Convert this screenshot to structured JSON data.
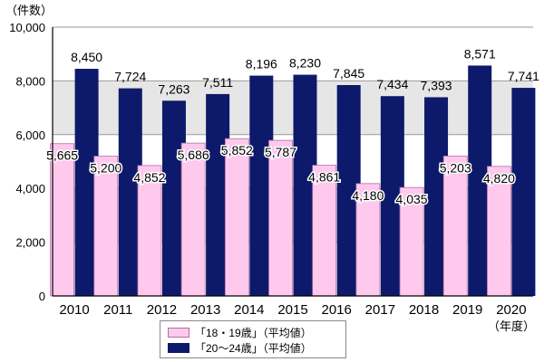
{
  "chart_data": {
    "type": "bar",
    "y_unit_label": "（件数）",
    "x_unit_label": "（年度）",
    "categories": [
      "2010",
      "2011",
      "2012",
      "2013",
      "2014",
      "2015",
      "2016",
      "2017",
      "2018",
      "2019",
      "2020"
    ],
    "series": [
      {
        "name": "「18・19歳」（平均値）",
        "color": "#ffc9ee",
        "stroke": "#b070a0",
        "values": [
          5665,
          5200,
          4852,
          5686,
          5852,
          5787,
          4861,
          4180,
          4035,
          5203,
          4820
        ],
        "labels": [
          "5,665",
          "5,200",
          "4,852",
          "5,686",
          "5,852",
          "5,787",
          "4,861",
          "4,180",
          "4,035",
          "5,203",
          "4,820"
        ]
      },
      {
        "name": "「20～24歳」（平均値）",
        "color": "#0d1a6b",
        "stroke": "#0d1a6b",
        "values": [
          8450,
          7724,
          7263,
          7511,
          8196,
          8230,
          7845,
          7434,
          7393,
          8571,
          7741
        ],
        "labels": [
          "8,450",
          "7,724",
          "7,263",
          "7,511",
          "8,196",
          "8,230",
          "7,845",
          "7,434",
          "7,393",
          "8,571",
          "7,741"
        ]
      }
    ],
    "ylim": [
      0,
      10000
    ],
    "yticks": [
      0,
      2000,
      4000,
      6000,
      8000,
      10000
    ],
    "ytick_labels": [
      "0",
      "2,000",
      "4,000",
      "6,000",
      "8,000",
      "10,000"
    ],
    "grid": true,
    "legend_position": "bottom"
  }
}
